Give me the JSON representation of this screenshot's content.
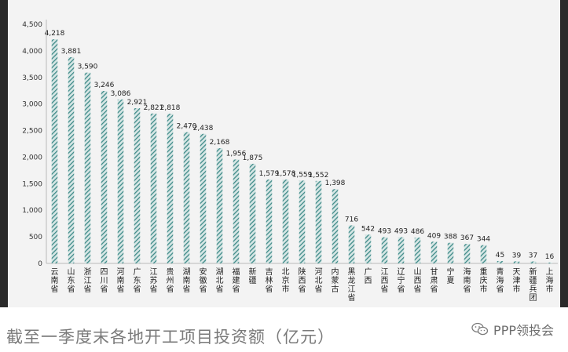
{
  "chart_data": {
    "type": "bar",
    "title": "截至一季度末各地开工项目投资额（亿元）",
    "xlabel": "",
    "ylabel": "",
    "ylim": [
      0,
      4500
    ],
    "y_ticks": [
      "0",
      "500",
      "1,000",
      "1,500",
      "2,000",
      "2,500",
      "3,000",
      "3,500",
      "4,000",
      "4,500"
    ],
    "y_tick_values": [
      0,
      500,
      1000,
      1500,
      2000,
      2500,
      3000,
      3500,
      4000,
      4500
    ],
    "grid": false,
    "bar_color": "#3f8a88",
    "categories": [
      "云南省",
      "山东省",
      "浙江省",
      "四川省",
      "河南省",
      "广东省",
      "江苏省",
      "贵州省",
      "湖南省",
      "安徽省",
      "湖北省",
      "福建省",
      "新疆",
      "吉林省",
      "北京市",
      "陕西省",
      "河北省",
      "内蒙古",
      "黑龙江省",
      "广西",
      "江西省",
      "辽宁省",
      "山西省",
      "甘肃省",
      "宁夏",
      "海南省",
      "重庆市",
      "青海省",
      "天津市",
      "新疆兵团",
      "上海市"
    ],
    "values": [
      4218,
      3881,
      3590,
      3246,
      3086,
      2921,
      2821,
      2818,
      2470,
      2438,
      2168,
      1956,
      1875,
      1579,
      1578,
      1559,
      1552,
      1398,
      716,
      542,
      493,
      493,
      486,
      409,
      388,
      367,
      344,
      45,
      39,
      37,
      16
    ],
    "labels": [
      "4,218",
      "3,881",
      "3,590",
      "3,246",
      "3,086",
      "2,921",
      "2,821",
      "2,818",
      "2,470",
      "2,438",
      "2,168",
      "1,956",
      "1,875",
      "1,579",
      "1,578",
      "1,559",
      "1,552",
      "1,398",
      "716",
      "542",
      "493",
      "493",
      "486",
      "409",
      "388",
      "367",
      "344",
      "45",
      "39",
      "37",
      "16"
    ]
  },
  "caption": "截至一季度末各地开工项目投资额（亿元）",
  "watermark": {
    "text": "PPP领投会",
    "icon": "wechat-icon"
  }
}
